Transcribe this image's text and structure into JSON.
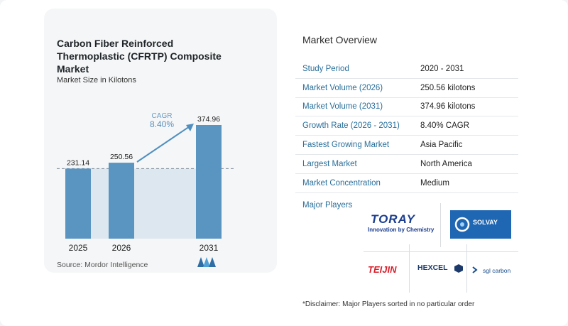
{
  "chart": {
    "title": "Carbon Fiber Reinforced Thermoplastic (CFRTP) Composite Market",
    "subtitle": "Market Size in Kilotons",
    "source": "Source:  Mordor Intelligence",
    "cagr_label": "CAGR",
    "cagr_value": "8.40%",
    "colors": {
      "bar": "#5a95c2",
      "baseline_fill": "#dce7ef",
      "arrow": "#4f8fc0"
    }
  },
  "chart_data": {
    "type": "bar",
    "categories": [
      "2025",
      "2026",
      "2031"
    ],
    "values": [
      231.14,
      250.56,
      374.96
    ],
    "value_labels": [
      "231.14",
      "250.56",
      "374.96"
    ],
    "title": "Carbon Fiber Reinforced Thermoplastic (CFRTP) Composite Market",
    "subtitle": "Market Size in Kilotons",
    "annotation": "CAGR 8.40%"
  },
  "overview": {
    "title": "Market Overview",
    "rows": [
      {
        "label": "Study Period",
        "value": "2020 - 2031"
      },
      {
        "label": "Market Volume (2026)",
        "value": "250.56 kilotons"
      },
      {
        "label": "Market Volume (2031)",
        "value": "374.96 kilotons"
      },
      {
        "label": "Growth Rate (2026 - 2031)",
        "value": "8.40% CAGR"
      },
      {
        "label": "Fastest Growing Market",
        "value": "Asia Pacific"
      },
      {
        "label": "Largest Market",
        "value": "North America"
      },
      {
        "label": "Market Concentration",
        "value": "Medium"
      }
    ]
  },
  "players": {
    "title": "Major Players",
    "logos": [
      {
        "name": "TORAY",
        "tagline": "Innovation by Chemistry",
        "icon": "toray-logo"
      },
      {
        "name": "SOLVAY",
        "icon": "solvay-logo"
      },
      {
        "name": "TEIJIN",
        "icon": "teijin-logo"
      },
      {
        "name": "HEXCEL",
        "icon": "hexcel-logo"
      },
      {
        "name": "sgl carbon",
        "icon": "sgl-logo"
      }
    ]
  },
  "disclaimer": "*Disclaimer: Major Players sorted in no particular order"
}
